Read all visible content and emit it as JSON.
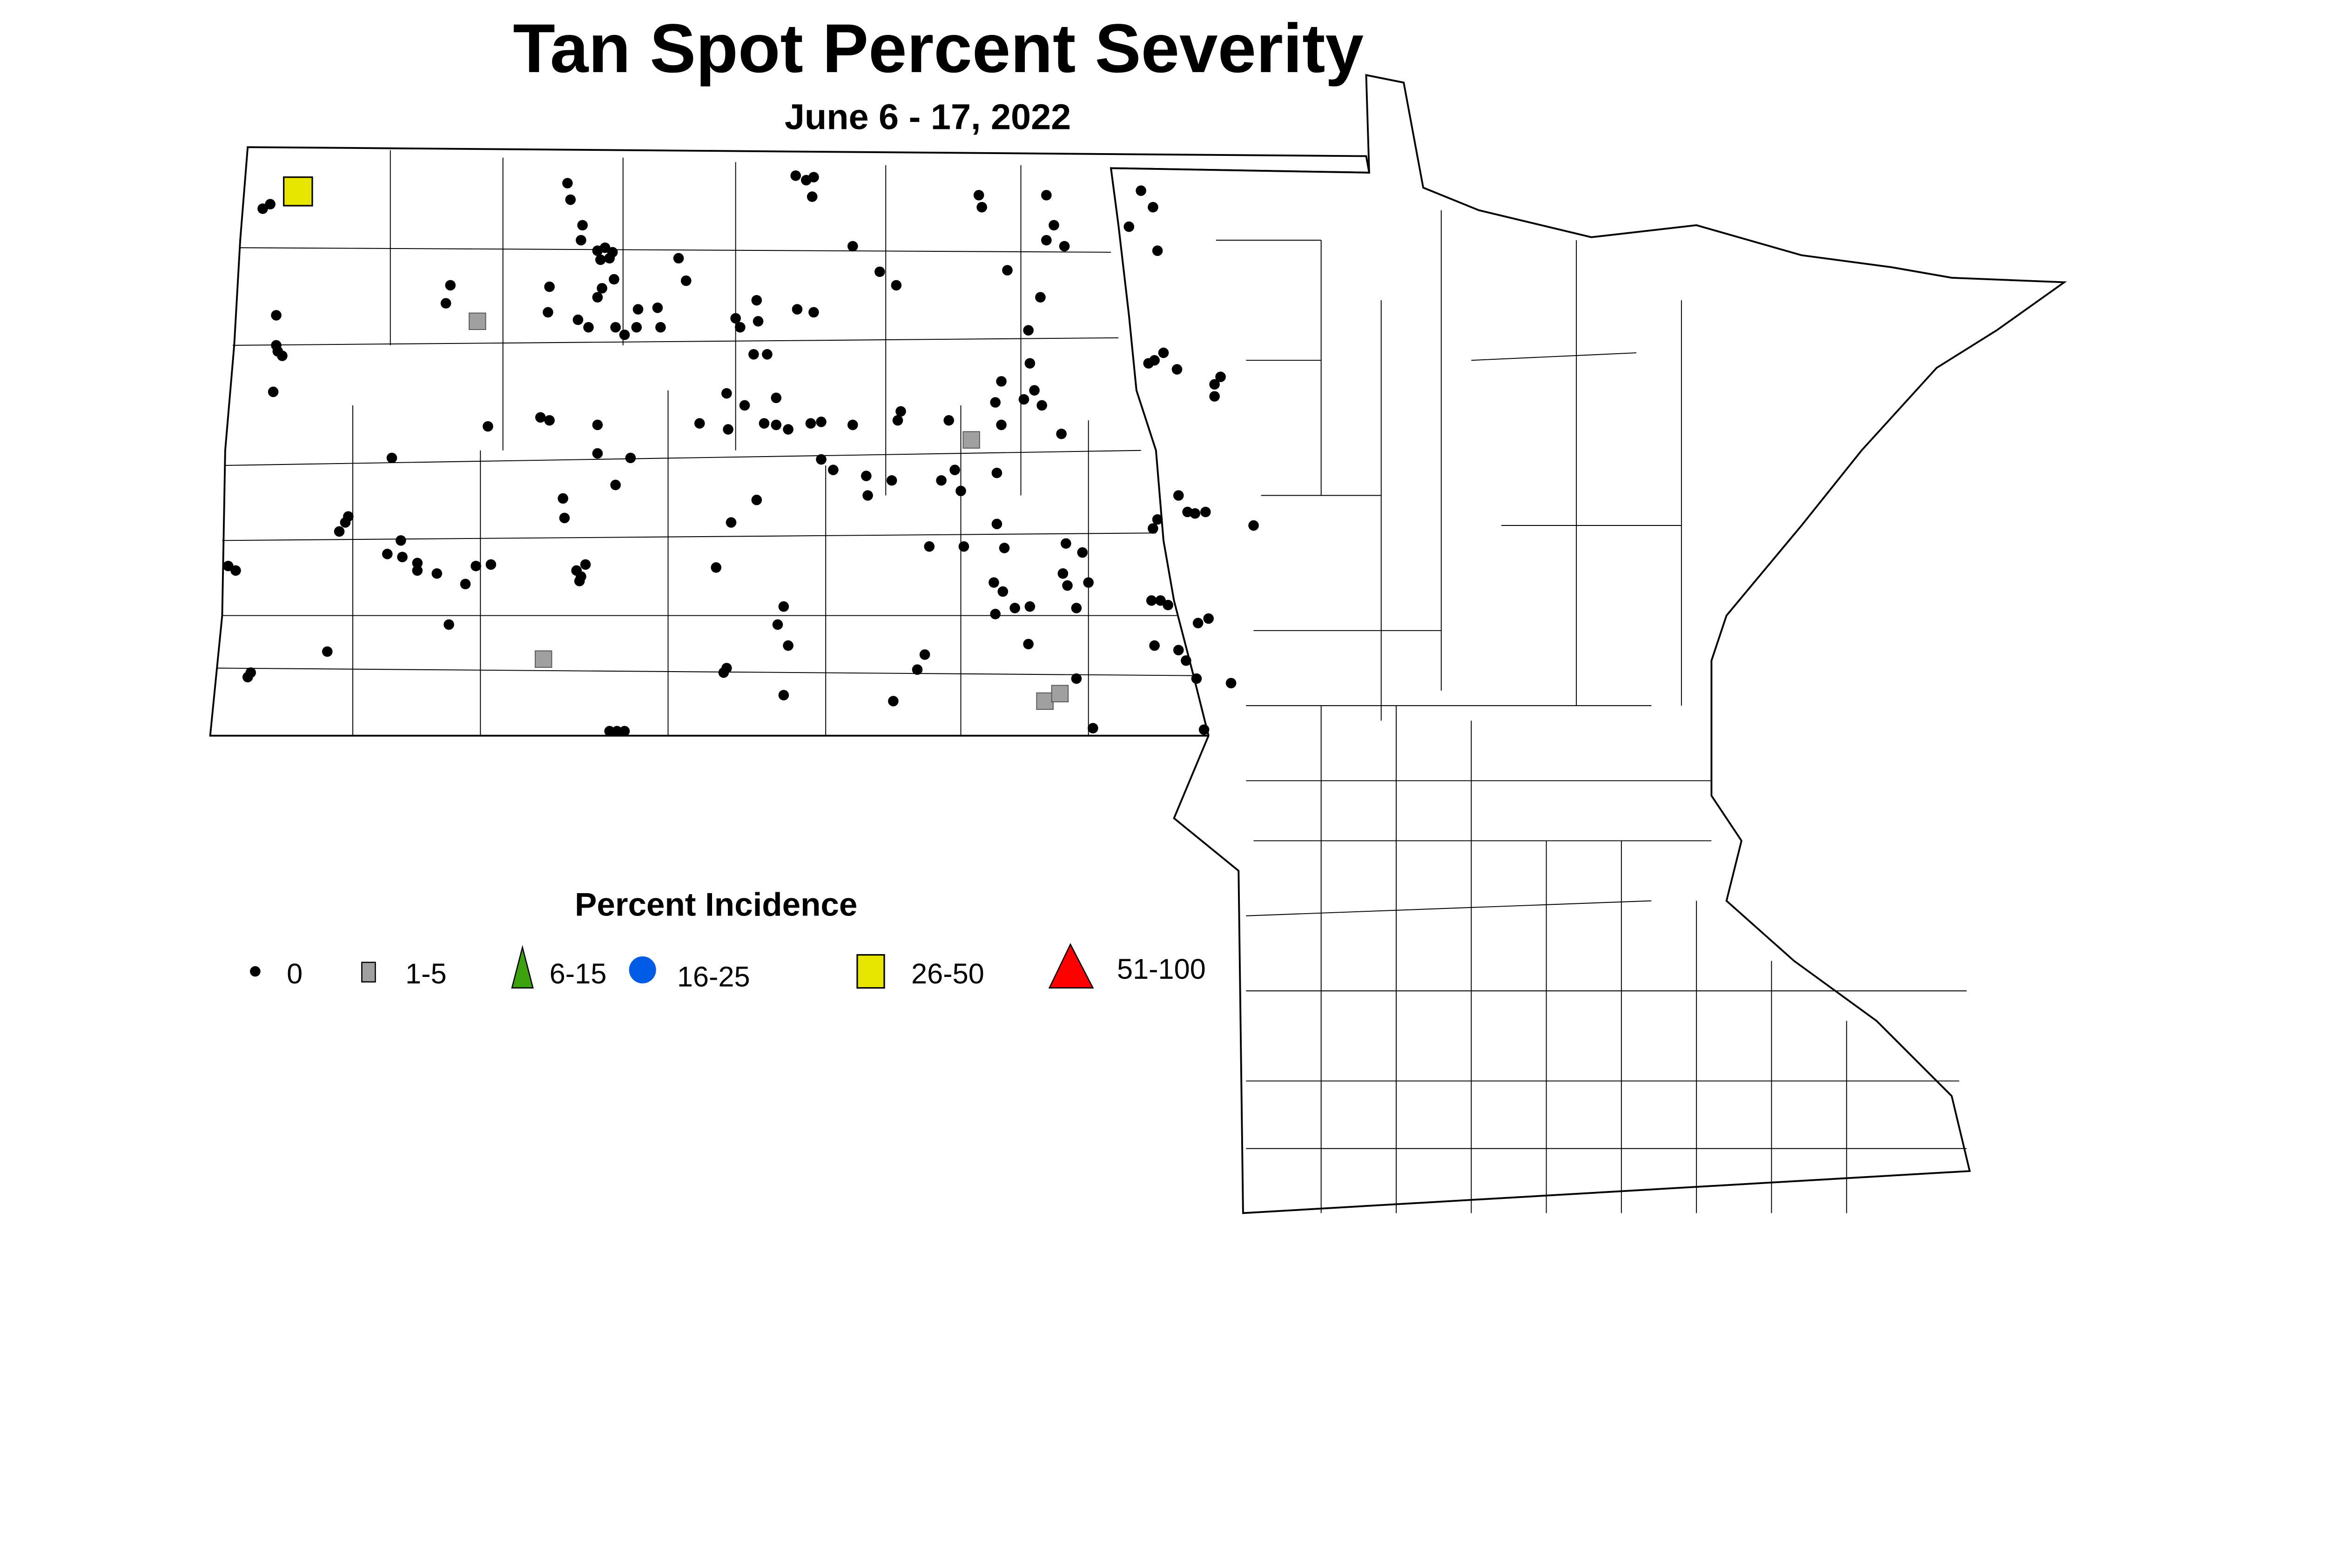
{
  "title": "Tan Spot Percent Severity",
  "subtitle": "June 6 - 17, 2022",
  "legend": {
    "title": "Percent Incidence",
    "items": [
      {
        "label": "0",
        "shape": "dot",
        "color": "#000000"
      },
      {
        "label": "1-5",
        "shape": "square",
        "color": "#a0a0a0"
      },
      {
        "label": "6-15",
        "shape": "triangle",
        "color": "#3ca30f"
      },
      {
        "label": "16-25",
        "shape": "circle",
        "color": "#005ce6"
      },
      {
        "label": "26-50",
        "shape": "square",
        "color": "#e6e600"
      },
      {
        "label": "51-100",
        "shape": "triangle",
        "color": "#ff0000"
      }
    ]
  }
}
